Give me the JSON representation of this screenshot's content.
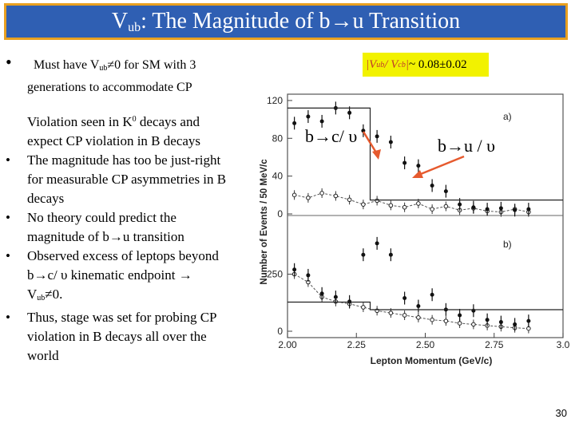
{
  "title": {
    "prefix": "V",
    "sub": "ub",
    "suffix": ": The Magnitude of b→u Transition"
  },
  "bullets": {
    "b1": {
      "l1_pre": "Must have V",
      "l1_sub": "ub",
      "l1_post": "≠0 for SM with 3",
      "l2": "generations to accommodate CP",
      "l3_pre": "Violation  seen in K",
      "l3_sup": "0",
      "l3_post": " decays and",
      "l4": "expect CP violation in B decays"
    },
    "b2": {
      "l1": "The magnitude has too be just-right",
      "l2": "for measurable CP asymmetries in B",
      "l3": "decays"
    },
    "b3": {
      "l1": "No theory could predict the",
      "l2": "magnitude of b→u transition"
    },
    "b4": {
      "l1": "Observed excess of leptops beyond",
      "l2": "b→c/ υ kinematic endpoint →",
      "l3_pre": "V",
      "l3_sub": "ub",
      "l3_post": "≠0."
    },
    "b5": {
      "l1": "Thus, stage was set for probing CP",
      "l2": "violation in B decays  all over the",
      "l3": "world"
    },
    "bullet_char": "•"
  },
  "vub_box": {
    "text_v": "|V",
    "text_ub": "ub",
    "text_slash": " / V",
    "text_cb": "cb",
    "text_bar": "|",
    "text_val": " ~ 0.08±0.02"
  },
  "annotations": {
    "b_to_c": "b→c/ υ",
    "b_to_u": "b→u / υ"
  },
  "page_number": "30",
  "colors": {
    "title_bg": "#2f5fb3",
    "title_border": "#e8a020",
    "arrow": "#e65a2e",
    "box": "#f2f200"
  },
  "chart_data": {
    "type": "scatter",
    "xlabel": "Lepton Momentum (GeV/c)",
    "ylabel": "Number of Events / 50 MeV/c",
    "x_ticks": [
      "2.00",
      "2.25",
      "2.50",
      "2.75",
      "3.0"
    ],
    "xlim": [
      2.0,
      3.0
    ],
    "panels": [
      {
        "label": "a)",
        "y_ticks": [
          "0",
          "40",
          "80",
          "120"
        ],
        "ylim": [
          0,
          125
        ],
        "on_resonance_x": [
          2.025,
          2.075,
          2.125,
          2.175,
          2.225,
          2.275,
          2.325,
          2.375,
          2.425,
          2.475,
          2.525,
          2.575,
          2.625,
          2.675,
          2.725,
          2.775,
          2.825,
          2.875
        ],
        "on_resonance_y": [
          96,
          103,
          98,
          112,
          107,
          88,
          82,
          76,
          54,
          51,
          30,
          24,
          10,
          7,
          5,
          6,
          4,
          5
        ],
        "continuum_x": [
          2.025,
          2.075,
          2.125,
          2.175,
          2.225,
          2.275,
          2.325,
          2.375,
          2.425,
          2.475,
          2.525,
          2.575,
          2.625,
          2.675,
          2.725,
          2.775,
          2.825,
          2.875
        ],
        "continuum_y": [
          20,
          17,
          22,
          19,
          15,
          10,
          14,
          9,
          7,
          11,
          5,
          8,
          4,
          6,
          3,
          2,
          5,
          2
        ],
        "fit_label": "b→c/ υ"
      },
      {
        "label": "b)",
        "y_ticks": [
          "0",
          "250"
        ],
        "ylim": [
          0,
          500
        ],
        "on_resonance_x": [
          2.025,
          2.075,
          2.125,
          2.175,
          2.225,
          2.275,
          2.325,
          2.375,
          2.425,
          2.475,
          2.525,
          2.575,
          2.625,
          2.675,
          2.725,
          2.775,
          2.825,
          2.875
        ],
        "on_resonance_y": [
          270,
          245,
          165,
          150,
          130,
          335,
          385,
          335,
          145,
          110,
          160,
          95,
          70,
          90,
          50,
          40,
          30,
          45
        ],
        "continuum_x": [
          2.025,
          2.075,
          2.125,
          2.175,
          2.225,
          2.275,
          2.325,
          2.375,
          2.425,
          2.475,
          2.525,
          2.575,
          2.625,
          2.675,
          2.725,
          2.775,
          2.825,
          2.875
        ],
        "continuum_y": [
          250,
          215,
          150,
          130,
          120,
          105,
          90,
          80,
          70,
          60,
          50,
          45,
          35,
          30,
          25,
          20,
          15,
          12
        ]
      }
    ]
  }
}
